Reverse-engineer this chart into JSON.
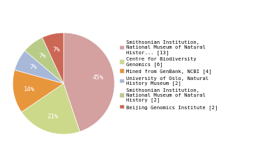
{
  "labels": [
    "Smithsonian Institution,\nNational Museum of Natural\nHistor... [13]",
    "Centre for Biodiversity\nGenomics [6]",
    "Mined from GenBank, NCBI [4]",
    "University of Oslo, Natural\nHistory Museum [2]",
    "Smithsonian Institution,\nNational Museum of Natural\nHistory [2]",
    "Beijing Genomics Institute [2]"
  ],
  "values": [
    13,
    6,
    4,
    2,
    2,
    2
  ],
  "colors": [
    "#d4a0a0",
    "#ccd98a",
    "#e8963c",
    "#a8b8d8",
    "#b8cc88",
    "#cc6655"
  ],
  "legend_labels": [
    "Smithsonian Institution,\nNational Museum of Natural\nHistor... [13]",
    "Centre for Biodiversity\nGenomics [6]",
    "Mined from GenBank, NCBI [4]",
    "University of Oslo, Natural\nHistory Museum [2]",
    "Smithsonian Institution,\nNational Museum of Natural\nHistory [2]",
    "Beijing Genomics Institute [2]"
  ],
  "startangle": 90,
  "background_color": "#ffffff",
  "text_color": "#333333"
}
